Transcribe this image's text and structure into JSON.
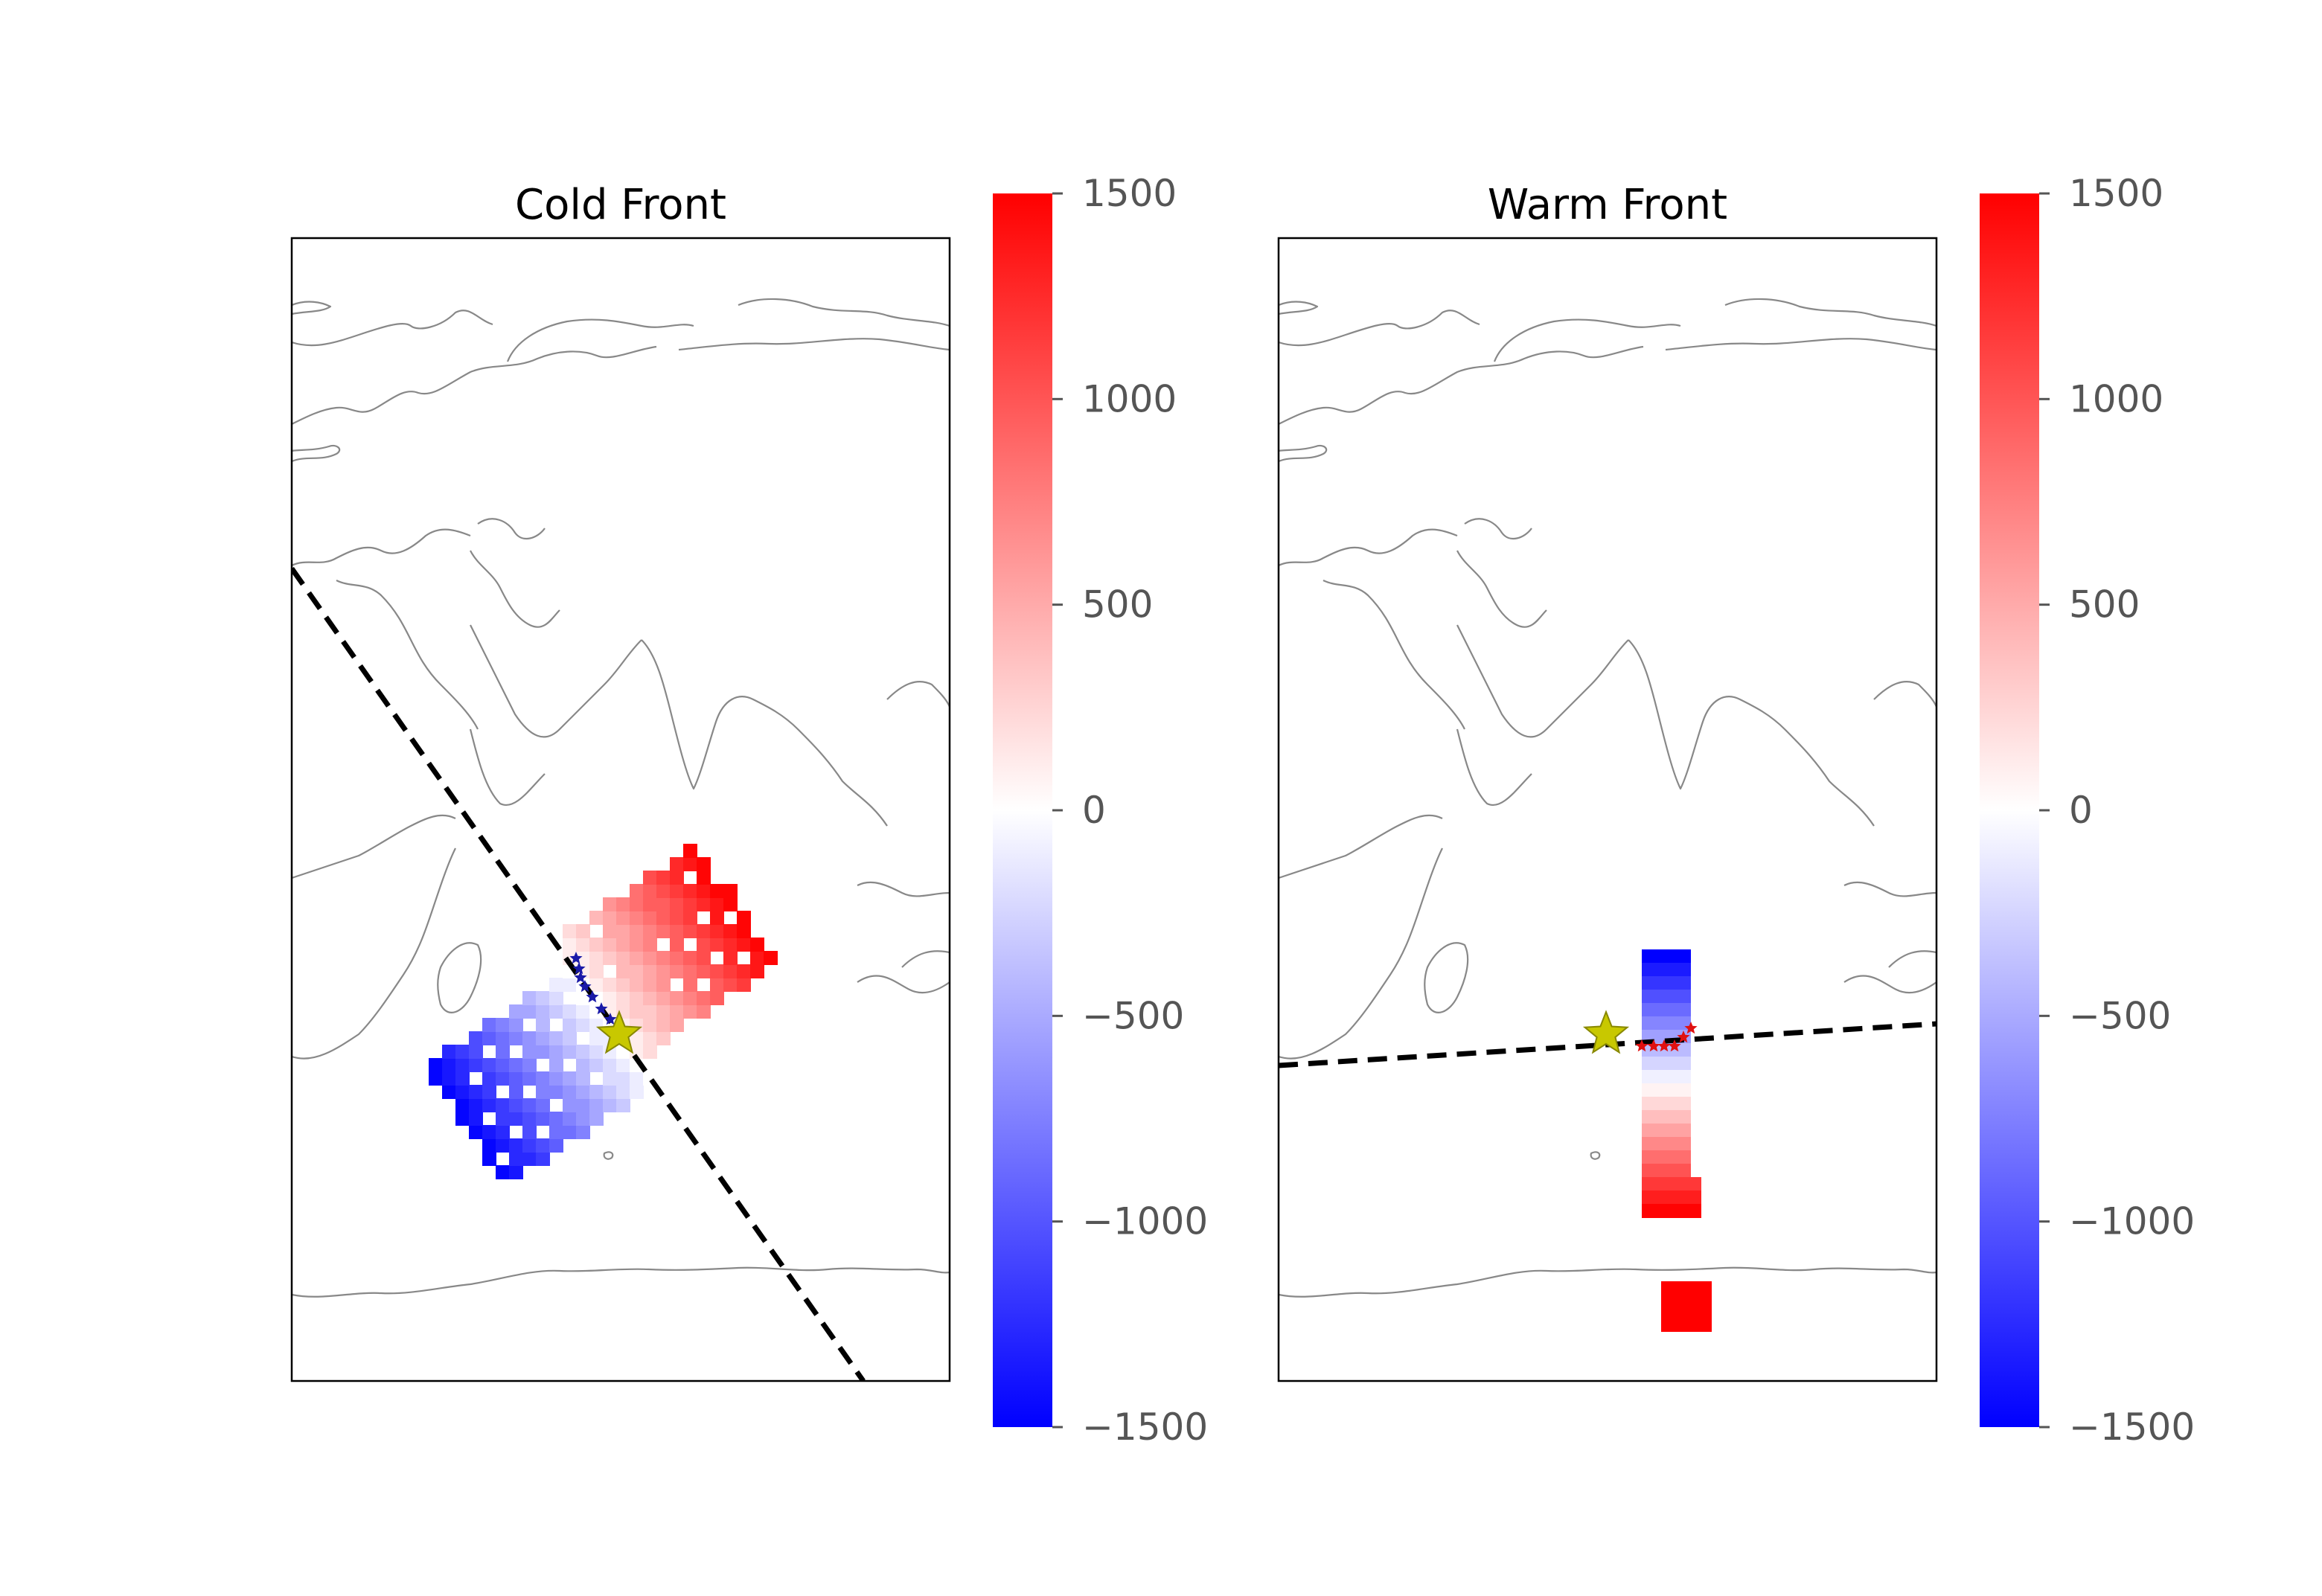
{
  "figure": {
    "panels": [
      {
        "id": "cold",
        "title": "Cold Front",
        "center_star_color": "#c8c800",
        "front_star_color": "#1a1aa8"
      },
      {
        "id": "warm",
        "title": "Warm Front",
        "center_star_color": "#c8c800",
        "front_star_color": "#e01010"
      }
    ],
    "colorbar": {
      "colormap": "bwr",
      "min": -1500,
      "max": 1500,
      "ticks": [
        1500,
        1000,
        500,
        0,
        -500,
        -1000,
        -1500
      ],
      "tick_labels": [
        "1500",
        "1000",
        "500",
        "0",
        "−500",
        "−1000",
        "−1500"
      ],
      "colors": {
        "low": "#0000ff",
        "mid": "#ffffff",
        "high": "#ff0000"
      }
    }
  }
}
